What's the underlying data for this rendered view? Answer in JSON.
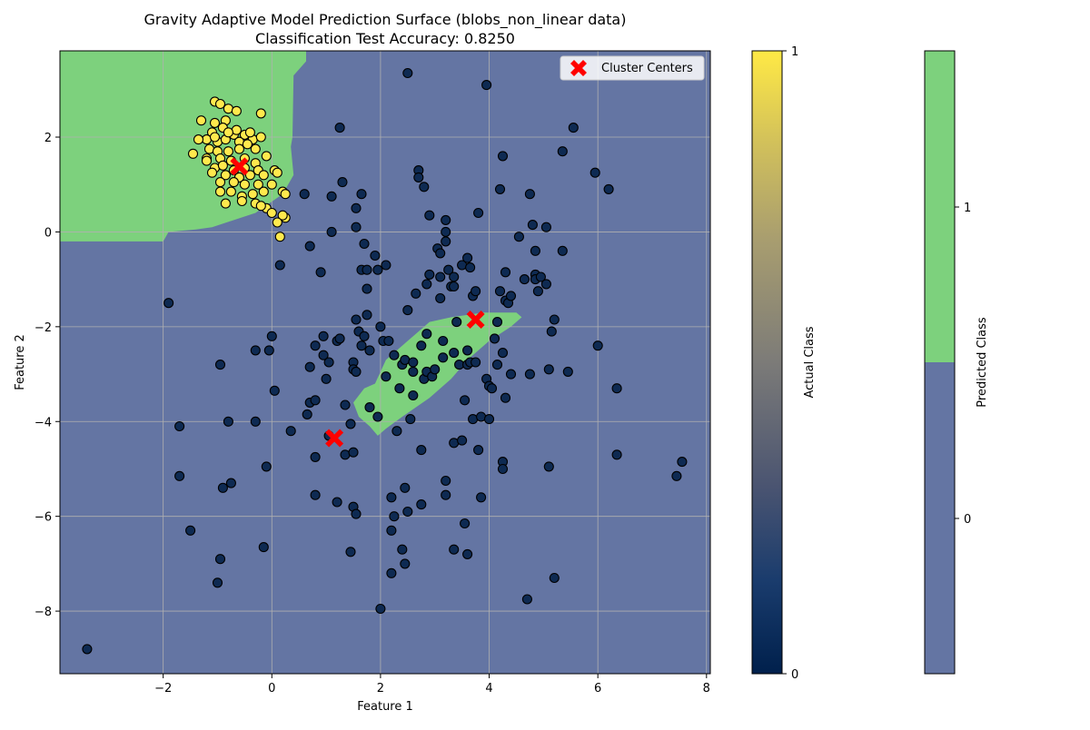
{
  "chart_data": {
    "type": "scatter",
    "title_line1": "Gravity Adaptive Model Prediction Surface (blobs_non_linear data)",
    "title_line2": "Classification Test Accuracy: 0.8250",
    "xlabel": "Feature 1",
    "ylabel": "Feature 2",
    "xlim": [
      -3.9,
      8.07
    ],
    "ylim": [
      -9.32,
      3.82
    ],
    "xticks": [
      -2,
      0,
      2,
      4,
      6,
      8
    ],
    "yticks": [
      -8,
      -6,
      -4,
      -2,
      0,
      2
    ],
    "grid": true,
    "legend": {
      "position": "top-right",
      "entries": [
        "Cluster Centers"
      ]
    },
    "colors": {
      "background_class0": "#6475a3",
      "region_class1": "#7dd17d",
      "point_class0": "#0e2a52",
      "point_class1": "#ffe94d",
      "center_marker": "#ff0000",
      "grid": "#b0b0b0"
    },
    "decision_regions_class1": [
      [
        [
          -3.9,
          3.82
        ],
        [
          0.63,
          3.82
        ],
        [
          0.63,
          3.6
        ],
        [
          0.4,
          3.3
        ],
        [
          0.38,
          2.0
        ],
        [
          0.35,
          1.8
        ],
        [
          0.4,
          1.2
        ],
        [
          0.2,
          0.8
        ],
        [
          -0.3,
          0.4
        ],
        [
          -1.1,
          0.1
        ],
        [
          -1.4,
          0.05
        ],
        [
          -1.9,
          0.0
        ],
        [
          -2.0,
          -0.2
        ],
        [
          -3.9,
          -0.2
        ]
      ],
      [
        [
          1.9,
          -3.2
        ],
        [
          2.1,
          -2.7
        ],
        [
          2.5,
          -2.3
        ],
        [
          2.7,
          -2.1
        ],
        [
          2.9,
          -1.9
        ],
        [
          3.3,
          -1.8
        ],
        [
          3.9,
          -1.7
        ],
        [
          4.5,
          -1.7
        ],
        [
          4.6,
          -1.8
        ],
        [
          4.4,
          -2.0
        ],
        [
          4.0,
          -2.3
        ],
        [
          3.6,
          -2.7
        ],
        [
          3.3,
          -3.1
        ],
        [
          2.9,
          -3.5
        ],
        [
          2.4,
          -3.9
        ],
        [
          2.1,
          -4.15
        ],
        [
          1.95,
          -4.3
        ],
        [
          1.8,
          -4.1
        ],
        [
          1.6,
          -3.9
        ],
        [
          1.5,
          -3.6
        ],
        [
          1.7,
          -3.3
        ]
      ]
    ],
    "series": [
      {
        "name": "Actual Class 0",
        "class": 0,
        "points": [
          [
            -3.4,
            -8.8
          ],
          [
            -1.9,
            -1.5
          ],
          [
            -1.7,
            -4.1
          ],
          [
            -1.7,
            -5.15
          ],
          [
            -1.5,
            -6.3
          ],
          [
            -0.95,
            -2.8
          ],
          [
            -0.9,
            -5.4
          ],
          [
            -0.95,
            -6.9
          ],
          [
            -1.0,
            -7.4
          ],
          [
            -0.8,
            -4.0
          ],
          [
            -0.75,
            -5.3
          ],
          [
            -0.3,
            -2.5
          ],
          [
            -0.3,
            -4.0
          ],
          [
            -0.15,
            -6.65
          ],
          [
            -0.1,
            -4.95
          ],
          [
            -0.05,
            -2.5
          ],
          [
            0.0,
            -2.2
          ],
          [
            0.05,
            -3.35
          ],
          [
            0.15,
            -0.7
          ],
          [
            0.35,
            -4.2
          ],
          [
            0.6,
            0.8
          ],
          [
            0.65,
            -3.85
          ],
          [
            0.7,
            -2.85
          ],
          [
            0.7,
            -3.6
          ],
          [
            0.7,
            -0.3
          ],
          [
            0.8,
            -2.4
          ],
          [
            0.8,
            -3.55
          ],
          [
            0.8,
            -4.75
          ],
          [
            0.8,
            -5.55
          ],
          [
            0.9,
            -0.85
          ],
          [
            0.95,
            -2.2
          ],
          [
            0.95,
            -2.6
          ],
          [
            1.0,
            -3.1
          ],
          [
            1.05,
            -2.75
          ],
          [
            1.05,
            -4.3
          ],
          [
            1.1,
            0.75
          ],
          [
            1.1,
            0.0
          ],
          [
            1.2,
            -2.3
          ],
          [
            1.2,
            -5.7
          ],
          [
            1.25,
            2.2
          ],
          [
            1.25,
            -2.25
          ],
          [
            1.3,
            1.05
          ],
          [
            1.35,
            -3.65
          ],
          [
            1.35,
            -4.7
          ],
          [
            1.45,
            -4.05
          ],
          [
            1.45,
            -6.75
          ],
          [
            1.5,
            -2.75
          ],
          [
            1.5,
            -2.9
          ],
          [
            1.5,
            -4.65
          ],
          [
            1.5,
            -5.8
          ],
          [
            1.55,
            0.5
          ],
          [
            1.55,
            0.1
          ],
          [
            1.55,
            -1.85
          ],
          [
            1.55,
            -2.95
          ],
          [
            1.55,
            -5.95
          ],
          [
            1.6,
            -2.1
          ],
          [
            1.65,
            0.8
          ],
          [
            1.65,
            -0.8
          ],
          [
            1.65,
            -2.4
          ],
          [
            1.7,
            -0.25
          ],
          [
            1.7,
            -2.2
          ],
          [
            1.75,
            -0.8
          ],
          [
            1.75,
            -1.2
          ],
          [
            1.75,
            -1.75
          ],
          [
            1.8,
            -2.5
          ],
          [
            1.8,
            -3.7
          ],
          [
            1.9,
            -0.5
          ],
          [
            1.95,
            -0.8
          ],
          [
            1.95,
            -3.9
          ],
          [
            2.0,
            -7.95
          ],
          [
            2.0,
            -2.0
          ],
          [
            2.05,
            -2.3
          ],
          [
            2.1,
            -0.7
          ],
          [
            2.1,
            -3.05
          ],
          [
            2.15,
            -2.3
          ],
          [
            2.2,
            -5.6
          ],
          [
            2.2,
            -6.3
          ],
          [
            2.2,
            -7.2
          ],
          [
            2.25,
            -6.0
          ],
          [
            2.25,
            -2.6
          ],
          [
            2.3,
            -4.2
          ],
          [
            2.35,
            -3.3
          ],
          [
            2.4,
            -2.8
          ],
          [
            2.4,
            -6.7
          ],
          [
            2.45,
            -2.7
          ],
          [
            2.45,
            -5.4
          ],
          [
            2.45,
            -7.0
          ],
          [
            2.5,
            3.35
          ],
          [
            2.5,
            -1.65
          ],
          [
            2.5,
            -5.9
          ],
          [
            2.55,
            -3.95
          ],
          [
            2.6,
            -2.75
          ],
          [
            2.6,
            -2.95
          ],
          [
            2.6,
            -3.45
          ],
          [
            2.65,
            -1.3
          ],
          [
            2.7,
            1.3
          ],
          [
            2.7,
            1.15
          ],
          [
            2.75,
            -2.4
          ],
          [
            2.75,
            -4.6
          ],
          [
            2.75,
            -5.75
          ],
          [
            2.8,
            0.95
          ],
          [
            2.8,
            -3.1
          ],
          [
            2.85,
            -1.1
          ],
          [
            2.85,
            -2.15
          ],
          [
            2.85,
            -2.95
          ],
          [
            2.9,
            0.35
          ],
          [
            2.9,
            -0.9
          ],
          [
            2.95,
            -3.05
          ],
          [
            3.0,
            -2.9
          ],
          [
            3.05,
            -0.35
          ],
          [
            3.1,
            -0.45
          ],
          [
            3.1,
            -0.95
          ],
          [
            3.1,
            -1.4
          ],
          [
            3.15,
            -2.3
          ],
          [
            3.15,
            -2.65
          ],
          [
            3.2,
            -5.25
          ],
          [
            3.2,
            -5.55
          ],
          [
            3.2,
            0.0
          ],
          [
            3.2,
            -0.2
          ],
          [
            3.2,
            0.25
          ],
          [
            3.25,
            -0.8
          ],
          [
            3.3,
            -1.15
          ],
          [
            3.35,
            -1.15
          ],
          [
            3.35,
            -2.55
          ],
          [
            3.35,
            -0.95
          ],
          [
            3.35,
            -4.45
          ],
          [
            3.35,
            -6.7
          ],
          [
            3.4,
            -1.9
          ],
          [
            3.45,
            -2.8
          ],
          [
            3.5,
            -0.7
          ],
          [
            3.5,
            -4.4
          ],
          [
            3.55,
            -6.15
          ],
          [
            3.55,
            -3.55
          ],
          [
            3.6,
            -0.55
          ],
          [
            3.6,
            -2.5
          ],
          [
            3.6,
            -2.8
          ],
          [
            3.6,
            -6.8
          ],
          [
            3.65,
            -0.75
          ],
          [
            3.65,
            -2.75
          ],
          [
            3.7,
            -1.35
          ],
          [
            3.7,
            -3.95
          ],
          [
            3.75,
            -1.25
          ],
          [
            3.75,
            -2.75
          ],
          [
            3.8,
            0.4
          ],
          [
            3.8,
            -4.6
          ],
          [
            3.85,
            -3.9
          ],
          [
            3.85,
            -5.6
          ],
          [
            3.95,
            3.1
          ],
          [
            3.95,
            -3.1
          ],
          [
            4.0,
            -3.95
          ],
          [
            4.0,
            -3.25
          ],
          [
            4.05,
            -3.3
          ],
          [
            4.1,
            -2.25
          ],
          [
            4.15,
            -2.8
          ],
          [
            4.15,
            -1.9
          ],
          [
            4.2,
            -1.25
          ],
          [
            4.2,
            0.9
          ],
          [
            4.25,
            1.6
          ],
          [
            4.25,
            -2.55
          ],
          [
            4.25,
            -4.85
          ],
          [
            4.25,
            -5.0
          ],
          [
            4.3,
            -0.85
          ],
          [
            4.3,
            -1.45
          ],
          [
            4.3,
            -3.5
          ],
          [
            4.35,
            -1.5
          ],
          [
            4.4,
            -1.35
          ],
          [
            4.4,
            -3.0
          ],
          [
            4.55,
            -0.1
          ],
          [
            4.65,
            -1.0
          ],
          [
            4.7,
            -7.75
          ],
          [
            4.75,
            0.8
          ],
          [
            4.75,
            -3.0
          ],
          [
            4.8,
            0.15
          ],
          [
            4.85,
            -0.4
          ],
          [
            4.85,
            -0.9
          ],
          [
            4.85,
            -1.0
          ],
          [
            4.9,
            -1.25
          ],
          [
            4.95,
            -0.95
          ],
          [
            5.05,
            0.1
          ],
          [
            5.05,
            -1.1
          ],
          [
            5.1,
            -2.9
          ],
          [
            5.1,
            -4.95
          ],
          [
            5.15,
            -2.1
          ],
          [
            5.2,
            -7.3
          ],
          [
            5.2,
            -1.85
          ],
          [
            5.35,
            1.7
          ],
          [
            5.35,
            -0.4
          ],
          [
            5.45,
            -2.95
          ],
          [
            5.55,
            2.2
          ],
          [
            5.95,
            1.25
          ],
          [
            6.0,
            -2.4
          ],
          [
            6.2,
            0.9
          ],
          [
            6.35,
            -4.7
          ],
          [
            6.35,
            -3.3
          ],
          [
            7.45,
            -5.15
          ],
          [
            7.55,
            -4.85
          ]
        ]
      },
      {
        "name": "Actual Class 1",
        "class": 1,
        "points": [
          [
            -1.05,
            2.75
          ],
          [
            -0.95,
            2.7
          ],
          [
            -0.8,
            2.6
          ],
          [
            -0.65,
            2.55
          ],
          [
            -0.2,
            2.5
          ],
          [
            -1.3,
            2.35
          ],
          [
            -1.05,
            2.3
          ],
          [
            -0.85,
            2.35
          ],
          [
            -1.1,
            2.1
          ],
          [
            -0.9,
            2.2
          ],
          [
            -0.7,
            2.05
          ],
          [
            -0.5,
            2.05
          ],
          [
            -0.35,
            1.95
          ],
          [
            -1.2,
            1.95
          ],
          [
            -1.0,
            1.9
          ],
          [
            -0.85,
            1.95
          ],
          [
            -0.6,
            1.9
          ],
          [
            -0.45,
            1.85
          ],
          [
            -1.15,
            1.75
          ],
          [
            -1.0,
            1.7
          ],
          [
            -0.8,
            1.7
          ],
          [
            -0.6,
            1.75
          ],
          [
            -0.3,
            1.75
          ],
          [
            -0.1,
            1.6
          ],
          [
            -1.45,
            1.65
          ],
          [
            -1.2,
            1.55
          ],
          [
            -0.95,
            1.55
          ],
          [
            -0.75,
            1.5
          ],
          [
            -0.5,
            1.55
          ],
          [
            -0.3,
            1.45
          ],
          [
            -1.05,
            1.35
          ],
          [
            -0.9,
            1.4
          ],
          [
            -0.7,
            1.3
          ],
          [
            -0.5,
            1.35
          ],
          [
            -0.25,
            1.3
          ],
          [
            0.05,
            1.3
          ],
          [
            -1.1,
            1.25
          ],
          [
            -0.85,
            1.2
          ],
          [
            -0.6,
            1.15
          ],
          [
            -0.4,
            1.2
          ],
          [
            -0.15,
            1.2
          ],
          [
            0.1,
            1.25
          ],
          [
            -0.95,
            1.05
          ],
          [
            -0.7,
            1.05
          ],
          [
            -0.5,
            1.0
          ],
          [
            -0.25,
            1.0
          ],
          [
            0.0,
            1.0
          ],
          [
            0.2,
            0.85
          ],
          [
            -0.95,
            0.85
          ],
          [
            -0.75,
            0.85
          ],
          [
            -0.55,
            0.75
          ],
          [
            -0.35,
            0.8
          ],
          [
            -0.15,
            0.85
          ],
          [
            -0.55,
            0.65
          ],
          [
            -0.3,
            0.6
          ],
          [
            -0.85,
            0.6
          ],
          [
            -0.1,
            0.5
          ],
          [
            0.0,
            0.4
          ],
          [
            -0.2,
            0.55
          ],
          [
            0.25,
            0.3
          ],
          [
            0.2,
            0.35
          ],
          [
            0.1,
            0.2
          ],
          [
            0.15,
            -0.1
          ],
          [
            0.25,
            0.8
          ],
          [
            -1.35,
            1.95
          ],
          [
            -1.2,
            1.5
          ],
          [
            -0.65,
            2.15
          ],
          [
            -0.4,
            2.1
          ],
          [
            -1.05,
            2.0
          ],
          [
            -0.2,
            2.0
          ],
          [
            -0.8,
            2.1
          ]
        ]
      },
      {
        "name": "Cluster Centers",
        "class": "center",
        "points": [
          [
            -0.6,
            1.38
          ],
          [
            3.75,
            -1.85
          ],
          [
            1.15,
            -4.35
          ]
        ]
      }
    ],
    "colorbars": [
      {
        "label": "Actual Class",
        "ticks": [
          "1",
          "0"
        ]
      },
      {
        "label": "Predicted Class",
        "ticks": [
          "1",
          "0"
        ]
      }
    ]
  }
}
